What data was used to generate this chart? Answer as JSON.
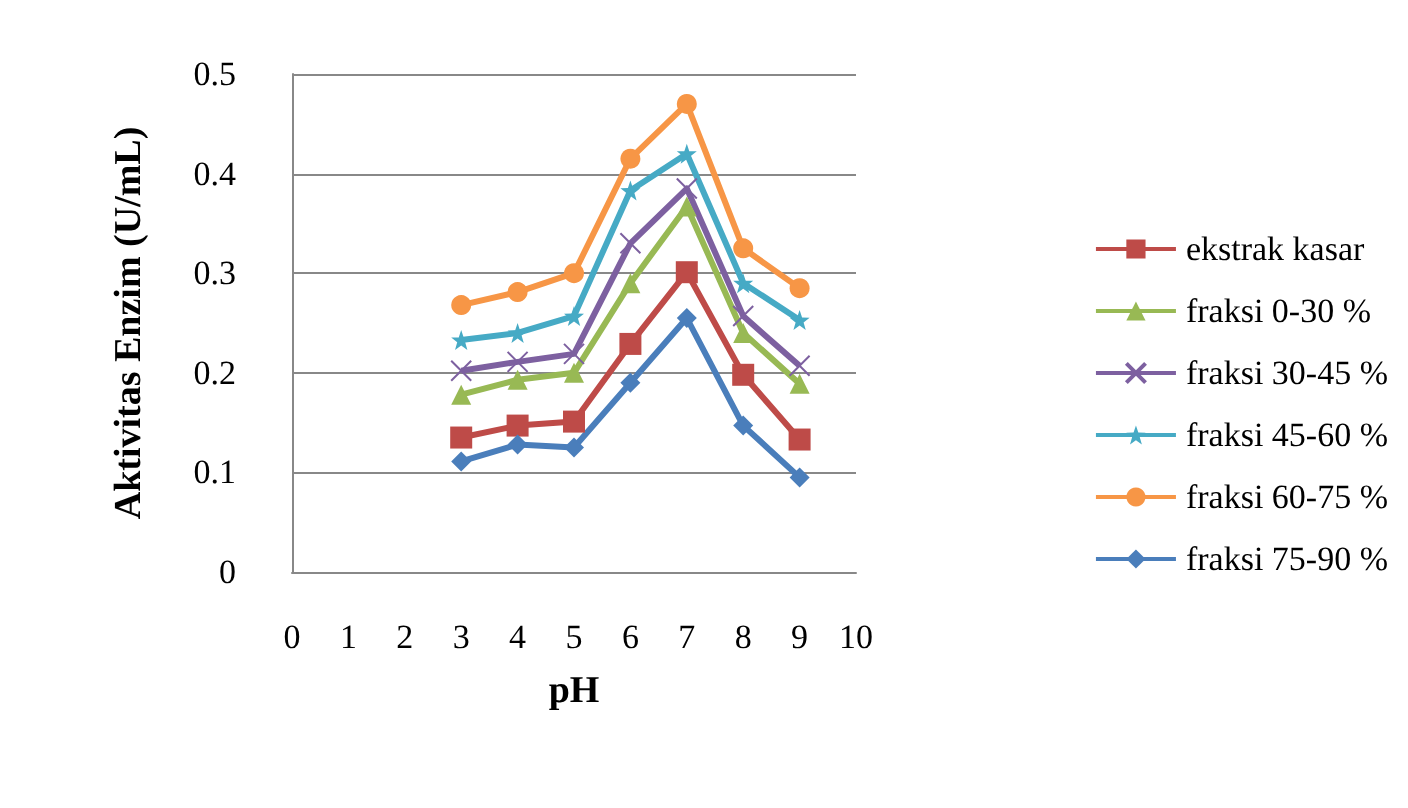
{
  "chart_data": {
    "type": "line",
    "xlabel": "pH",
    "ylabel": "Aktivitas Enzim (U/mL)",
    "x": [
      3,
      4,
      5,
      6,
      7,
      8,
      9
    ],
    "xlim": [
      0,
      10
    ],
    "xticks": [
      0,
      1,
      2,
      3,
      4,
      5,
      6,
      7,
      8,
      9,
      10
    ],
    "ylim": [
      0,
      0.5
    ],
    "yticks": [
      0,
      0.1,
      0.2,
      0.3,
      0.4,
      0.5
    ],
    "grid": "y",
    "legend": "right",
    "series": [
      {
        "name": "ekstrak kasar",
        "color": "#be4b48",
        "marker": "square",
        "values": [
          0.135,
          0.147,
          0.151,
          0.229,
          0.301,
          0.198,
          0.133
        ]
      },
      {
        "name": "fraksi 0-30 %",
        "color": "#98b954",
        "marker": "triangle",
        "values": [
          0.178,
          0.193,
          0.2,
          0.29,
          0.367,
          0.24,
          0.189
        ]
      },
      {
        "name": "fraksi 30-45 %",
        "color": "#7d60a0",
        "marker": "cross",
        "values": [
          0.202,
          0.211,
          0.219,
          0.33,
          0.385,
          0.257,
          0.207
        ]
      },
      {
        "name": "fraksi 45-60 %",
        "color": "#46aac5",
        "marker": "star",
        "values": [
          0.233,
          0.24,
          0.257,
          0.383,
          0.42,
          0.29,
          0.253
        ]
      },
      {
        "name": "fraksi 60-75 %",
        "color": "#f79646",
        "marker": "circle",
        "values": [
          0.268,
          0.281,
          0.3,
          0.415,
          0.47,
          0.325,
          0.285
        ]
      },
      {
        "name": "fraksi 75-90 %",
        "color": "#4a7ebb",
        "marker": "diamond",
        "values": [
          0.111,
          0.128,
          0.125,
          0.19,
          0.255,
          0.147,
          0.095
        ]
      }
    ]
  }
}
